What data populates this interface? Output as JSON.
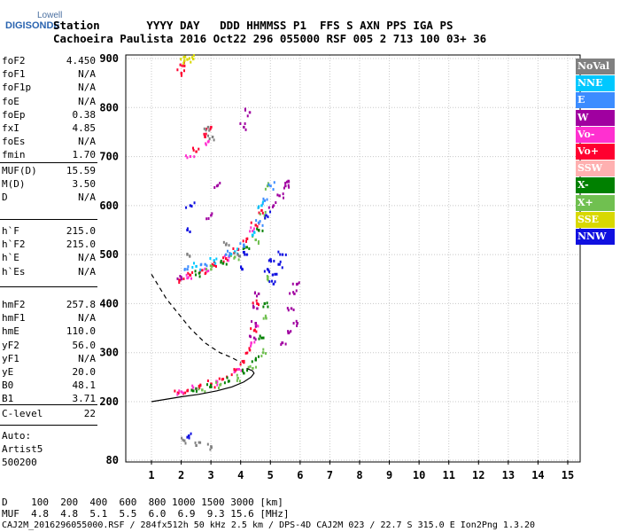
{
  "logo": {
    "line1": "Lowell",
    "line2": "DIGISONDE"
  },
  "header": {
    "labels_line": "Station       YYYY DAY   DDD HHMMSS P1  FFS S AXN PPS IGA PS",
    "values_line": "Cachoeira Paulista 2016 Oct22 296 055000 RSF 005 2 713 100 03+ 36"
  },
  "params_group1": [
    {
      "key": "foF2",
      "value": "4.450"
    },
    {
      "key": "foF1",
      "value": "N/A"
    },
    {
      "key": "foF1p",
      "value": "N/A"
    },
    {
      "key": "foE",
      "value": "N/A"
    },
    {
      "key": "foEp",
      "value": "0.38"
    },
    {
      "key": "fxI",
      "value": "4.85"
    },
    {
      "key": "foEs",
      "value": "N/A"
    },
    {
      "key": "fmin",
      "value": "1.70"
    }
  ],
  "params_group2": [
    {
      "key": "MUF(D)",
      "value": "15.59"
    },
    {
      "key": "M(D)",
      "value": "3.50"
    },
    {
      "key": "D",
      "value": "N/A"
    }
  ],
  "params_group3": [
    {
      "key": "h`F",
      "value": "215.0"
    },
    {
      "key": "h`F2",
      "value": "215.0"
    },
    {
      "key": "h`E",
      "value": "N/A"
    },
    {
      "key": "h`Es",
      "value": "N/A"
    }
  ],
  "params_group4": [
    {
      "key": "hmF2",
      "value": "257.8"
    },
    {
      "key": "hmF1",
      "value": "N/A"
    },
    {
      "key": "hmE",
      "value": "110.0"
    },
    {
      "key": "yF2",
      "value": "56.0"
    },
    {
      "key": "yF1",
      "value": "N/A"
    },
    {
      "key": "yE",
      "value": "20.0"
    },
    {
      "key": "B0",
      "value": "48.1"
    },
    {
      "key": "B1",
      "value": "3.71"
    }
  ],
  "clevel": {
    "key": "C-level",
    "value": "22"
  },
  "auto": {
    "line1": "Auto:",
    "line2": "Artist5",
    "line3": "500200"
  },
  "footer": {
    "d_line": "D    100  200  400  600  800 1000 1500 3000 [km]",
    "muf_line": "MUF  4.8  4.8  5.1  5.5  6.0  6.9  9.3 15.6 [MHz]",
    "file_line": "CAJ2M_2016296055000.RSF / 284fx512h 50 kHz 2.5 km / DPS-4D CAJ2M 023 / 22.7 S 315.0 E Ion2Png 1.3.20"
  },
  "legend": [
    {
      "label": "NoVal",
      "color": "#808080"
    },
    {
      "label": "NNE",
      "color": "#00c8ff"
    },
    {
      "label": "E",
      "color": "#3c8cff"
    },
    {
      "label": "W",
      "color": "#a000a0"
    },
    {
      "label": "Vo-",
      "color": "#ff30d0"
    },
    {
      "label": "Vo+",
      "color": "#ff0030"
    },
    {
      "label": "SSW",
      "color": "#ffb0b0"
    },
    {
      "label": "X-",
      "color": "#008000"
    },
    {
      "label": "X+",
      "color": "#70c050"
    },
    {
      "label": "SSE",
      "color": "#d8d800"
    },
    {
      "label": "NNW",
      "color": "#1010e0"
    }
  ],
  "chart_data": {
    "type": "scatter",
    "xlim": [
      1,
      15
    ],
    "ylim": [
      80,
      900
    ],
    "x_ticks": [
      1,
      2,
      3,
      4,
      5,
      6,
      7,
      8,
      9,
      10,
      11,
      12,
      13,
      14,
      15
    ],
    "y_ticks": [
      80,
      200,
      300,
      400,
      500,
      600,
      700,
      800,
      900
    ],
    "grid": true,
    "series": [
      {
        "name": "Vo+",
        "color": "#ff0030",
        "points": [
          [
            1.9,
            218
          ],
          [
            2.2,
            222
          ],
          [
            2.6,
            228
          ],
          [
            3.0,
            236
          ],
          [
            3.4,
            246
          ],
          [
            3.8,
            262
          ],
          [
            4.1,
            280
          ],
          [
            4.3,
            305
          ],
          [
            4.45,
            345
          ],
          [
            4.55,
            400
          ],
          [
            1.95,
            448
          ],
          [
            2.3,
            458
          ],
          [
            2.7,
            468
          ],
          [
            3.1,
            478
          ],
          [
            3.5,
            492
          ],
          [
            3.9,
            510
          ],
          [
            4.2,
            532
          ],
          [
            4.5,
            560
          ],
          [
            4.7,
            590
          ],
          [
            2.0,
            870
          ],
          [
            2.1,
            885
          ],
          [
            2.5,
            710
          ],
          [
            2.8,
            740
          ],
          [
            3.0,
            760
          ]
        ]
      },
      {
        "name": "Vo-",
        "color": "#ff30d0",
        "points": [
          [
            2.0,
            220
          ],
          [
            2.5,
            226
          ],
          [
            3.2,
            240
          ],
          [
            3.9,
            266
          ],
          [
            4.35,
            320
          ],
          [
            4.5,
            360
          ],
          [
            2.2,
            452
          ],
          [
            2.8,
            470
          ],
          [
            3.6,
            495
          ],
          [
            4.4,
            548
          ],
          [
            2.3,
            700
          ],
          [
            2.9,
            730
          ]
        ]
      },
      {
        "name": "X-",
        "color": "#008000",
        "points": [
          [
            2.4,
            222
          ],
          [
            3.0,
            230
          ],
          [
            3.6,
            242
          ],
          [
            4.1,
            258
          ],
          [
            4.5,
            285
          ],
          [
            4.7,
            330
          ],
          [
            4.8,
            400
          ],
          [
            2.6,
            462
          ],
          [
            3.4,
            482
          ],
          [
            4.2,
            515
          ],
          [
            4.6,
            550
          ]
        ]
      },
      {
        "name": "X+",
        "color": "#70c050",
        "points": [
          [
            2.7,
            224
          ],
          [
            3.3,
            234
          ],
          [
            3.9,
            248
          ],
          [
            4.4,
            268
          ],
          [
            4.75,
            300
          ],
          [
            4.85,
            370
          ],
          [
            4.9,
            450
          ],
          [
            3.0,
            470
          ],
          [
            3.8,
            495
          ],
          [
            4.5,
            530
          ],
          [
            4.8,
            580
          ],
          [
            4.9,
            640
          ]
        ]
      },
      {
        "name": "W",
        "color": "#a000a0",
        "points": [
          [
            4.45,
            330
          ],
          [
            4.5,
            360
          ],
          [
            4.55,
            390
          ],
          [
            4.6,
            420
          ],
          [
            5.4,
            320
          ],
          [
            5.6,
            340
          ],
          [
            5.9,
            360
          ],
          [
            5.7,
            390
          ],
          [
            5.8,
            420
          ],
          [
            5.9,
            440
          ],
          [
            5.1,
            600
          ],
          [
            5.3,
            620
          ],
          [
            5.5,
            640
          ],
          [
            5.6,
            650
          ],
          [
            2.0,
            450
          ],
          [
            3.0,
            580
          ],
          [
            3.2,
            640
          ],
          [
            4.1,
            760
          ],
          [
            4.3,
            790
          ]
        ]
      },
      {
        "name": "E",
        "color": "#3c8cff",
        "points": [
          [
            2.2,
            470
          ],
          [
            2.8,
            480
          ],
          [
            3.5,
            500
          ],
          [
            4.1,
            520
          ],
          [
            4.6,
            565
          ],
          [
            4.8,
            610
          ],
          [
            5.0,
            640
          ]
        ]
      },
      {
        "name": "NNW",
        "color": "#1010e0",
        "points": [
          [
            2.25,
            130
          ],
          [
            2.2,
            550
          ],
          [
            2.3,
            600
          ],
          [
            4.05,
            470
          ],
          [
            4.2,
            500
          ],
          [
            5.1,
            440
          ],
          [
            5.2,
            460
          ],
          [
            5.3,
            480
          ],
          [
            5.4,
            500
          ],
          [
            4.9,
            470
          ],
          [
            5.0,
            490
          ],
          [
            4.85,
            580
          ]
        ]
      },
      {
        "name": "NNE",
        "color": "#00c8ff",
        "points": [
          [
            2.5,
            476
          ],
          [
            3.1,
            488
          ],
          [
            3.8,
            506
          ],
          [
            4.4,
            540
          ],
          [
            4.7,
            600
          ]
        ]
      },
      {
        "name": "SSE",
        "color": "#d8d800",
        "points": [
          [
            2.1,
            896
          ],
          [
            2.2,
            898
          ],
          [
            2.4,
            899
          ]
        ]
      },
      {
        "name": "NoVal",
        "color": "#808080",
        "points": [
          [
            2.1,
            120
          ],
          [
            2.5,
            110
          ],
          [
            3.0,
            108
          ],
          [
            2.2,
            500
          ],
          [
            2.9,
            760
          ],
          [
            3.05,
            740
          ],
          [
            3.5,
            520
          ],
          [
            3.9,
            500
          ]
        ]
      }
    ],
    "profile_solid": [
      [
        1.0,
        200
      ],
      [
        1.5,
        205
      ],
      [
        2.0,
        210
      ],
      [
        2.6,
        215
      ],
      [
        3.2,
        222
      ],
      [
        3.7,
        230
      ],
      [
        4.1,
        240
      ],
      [
        4.35,
        250
      ],
      [
        4.45,
        258
      ],
      [
        4.4,
        263
      ],
      [
        4.2,
        268
      ]
    ],
    "profile_dashed": [
      [
        1.0,
        460
      ],
      [
        1.2,
        440
      ],
      [
        1.5,
        410
      ],
      [
        1.9,
        380
      ],
      [
        2.3,
        350
      ],
      [
        2.8,
        320
      ],
      [
        3.3,
        300
      ],
      [
        3.7,
        290
      ],
      [
        4.0,
        280
      ]
    ]
  }
}
